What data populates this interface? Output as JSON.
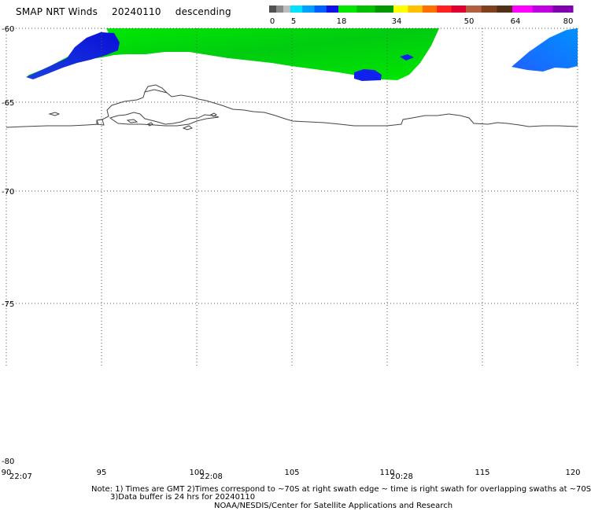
{
  "title": {
    "product": "SMAP NRT Winds",
    "date": "20240110",
    "pass": "descending"
  },
  "colorbar": {
    "tick_labels": [
      "0",
      "5",
      "18",
      "34",
      "50",
      "64",
      "80"
    ],
    "segments": [
      {
        "from": 0,
        "to": 5,
        "colors": [
          "#505050",
          "#8a8a8a",
          "#bdbdbd"
        ]
      },
      {
        "from": 5,
        "to": 18,
        "colors": [
          "#00e0ff",
          "#00a0ff",
          "#0060ff",
          "#1010e8"
        ]
      },
      {
        "from": 18,
        "to": 34,
        "colors": [
          "#00e800",
          "#00c000",
          "#009800"
        ]
      },
      {
        "from": 34,
        "to": 50,
        "colors": [
          "#ffff00",
          "#ffc000",
          "#ff7000",
          "#ff2020",
          "#e00030"
        ]
      },
      {
        "from": 50,
        "to": 64,
        "colors": [
          "#b06040",
          "#804020",
          "#503018"
        ]
      },
      {
        "from": 64,
        "to": 80,
        "colors": [
          "#ff00ff",
          "#c000e0",
          "#8000b0"
        ]
      }
    ]
  },
  "map": {
    "lon_range": [
      90,
      120
    ],
    "lat_range": [
      -80,
      -60
    ],
    "lon_ticks": [
      90,
      95,
      100,
      105,
      110,
      115,
      120
    ],
    "lat_ticks": [
      -60,
      -65,
      -70,
      -75,
      -80
    ],
    "lon_tick_labels": [
      "90",
      "95",
      "100",
      "105",
      "110",
      "115",
      "120"
    ],
    "lat_tick_labels": [
      "-60",
      "-65",
      "-70",
      "-75",
      "-80"
    ],
    "colors": {
      "grid": "#555555",
      "coast": "#444444",
      "green": "#00dd00",
      "blue": "#1030ee"
    }
  },
  "time_labels": [
    {
      "lon": 90,
      "text": "22:07"
    },
    {
      "lon": 100,
      "text": "22:08"
    },
    {
      "lon": 110,
      "text": "20:28"
    }
  ],
  "notes": {
    "line1": "Note: 1) Times are GMT 2)Times correspond to ~70S at right swath edge ~ time is right swath for overlapping swaths at ~70S",
    "line2": "3)Data buffer is 24 hrs for 20240110",
    "line3": "NOAA/NESDIS/Center for Satellite Applications and Research"
  }
}
